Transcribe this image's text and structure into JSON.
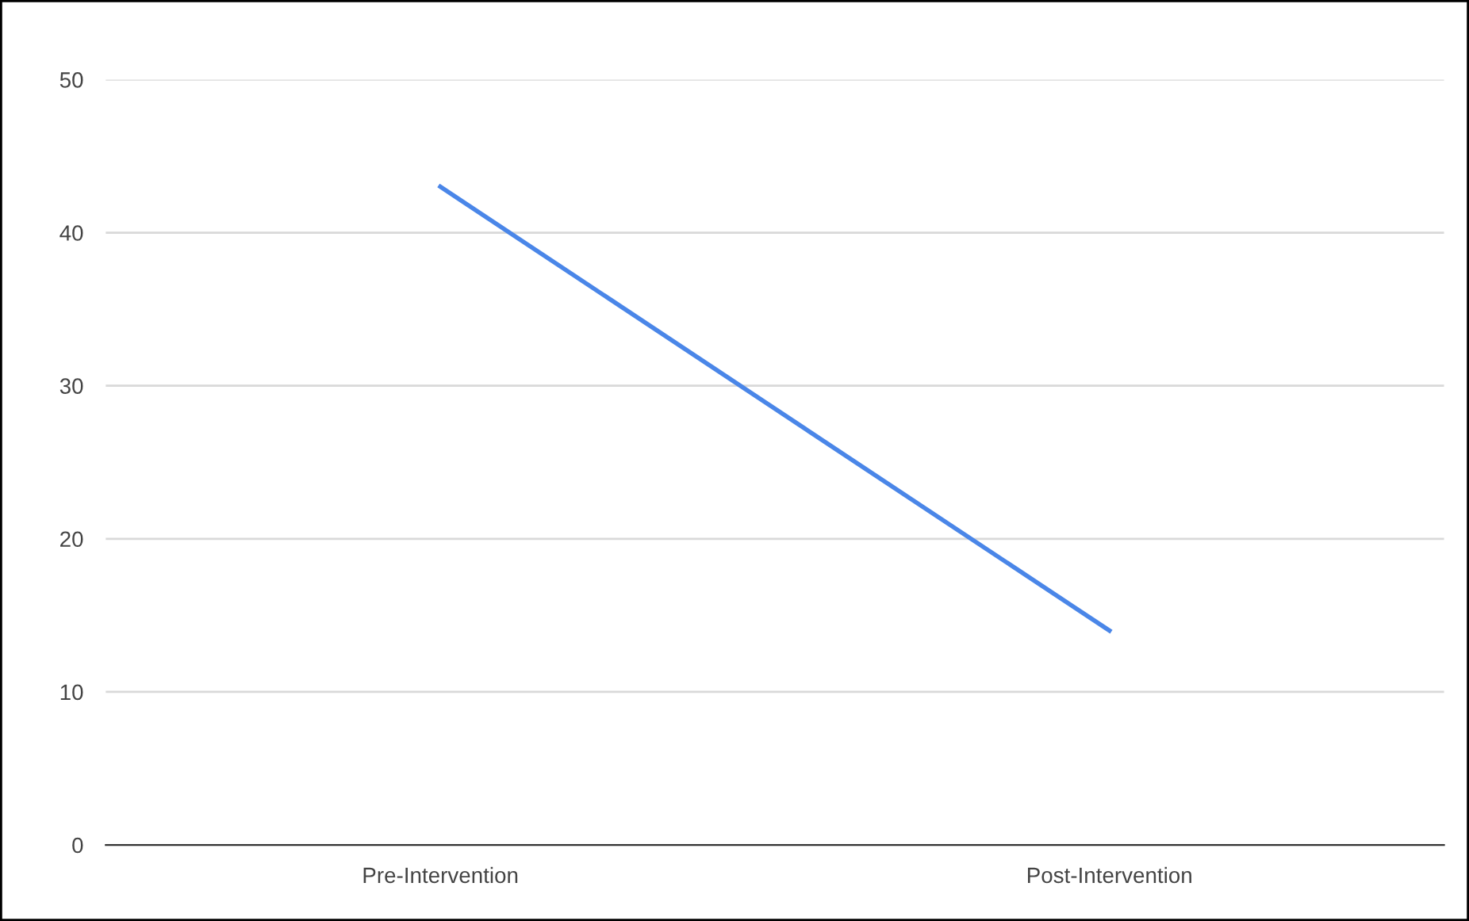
{
  "chart_data": {
    "type": "line",
    "categories": [
      "Pre-Intervention",
      "Post-Intervention"
    ],
    "series": [
      {
        "color": "#4a86e8",
        "values": [
          43,
          14
        ]
      }
    ],
    "ylim": [
      0,
      50
    ],
    "yticks": [
      0,
      10,
      20,
      30,
      40,
      50
    ],
    "grid": "y",
    "marker": "none",
    "line_style": "solid"
  }
}
